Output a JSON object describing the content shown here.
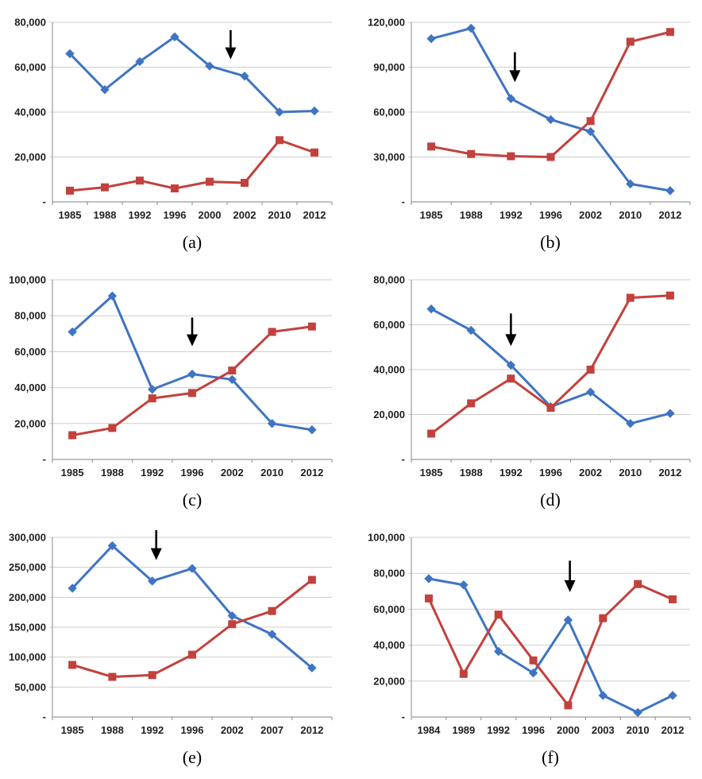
{
  "colors": {
    "series_blue": "#3E74C2",
    "series_red": "#C2413D",
    "gridline": "#CDCDCD",
    "axis": "#9B9B9B",
    "tick_label": "#1F1F1F",
    "arrow": "#000000",
    "background": "#FFFFFF"
  },
  "chart_data": [
    {
      "type": "line",
      "caption": "(a)",
      "categories": [
        "1985",
        "1988",
        "1992",
        "1996",
        "2000",
        "2002",
        "2010",
        "2012"
      ],
      "series": [
        {
          "name": "blue-diamond-series",
          "color_key": "series_blue",
          "marker": "diamond",
          "values": [
            66000,
            50000,
            62500,
            73500,
            60500,
            56000,
            40000,
            40500
          ]
        },
        {
          "name": "red-square-series",
          "color_key": "series_red",
          "marker": "square",
          "values": [
            5000,
            6500,
            9500,
            6000,
            9000,
            8500,
            27500,
            22000
          ]
        }
      ],
      "ylim": [
        0,
        80000
      ],
      "ytick_step": 20000,
      "y_zero_label": "-",
      "grid": true,
      "legend": "none",
      "annotation_arrow": {
        "x_index": 4.6,
        "y_from": 76500,
        "y_to": 63500
      }
    },
    {
      "type": "line",
      "caption": "(b)",
      "categories": [
        "1985",
        "1988",
        "1992",
        "1996",
        "2002",
        "2010",
        "2012"
      ],
      "series": [
        {
          "name": "blue-diamond-series",
          "color_key": "series_blue",
          "marker": "diamond",
          "values": [
            109000,
            116000,
            69000,
            55000,
            47000,
            12000,
            7500
          ]
        },
        {
          "name": "red-square-series",
          "color_key": "series_red",
          "marker": "square",
          "values": [
            37000,
            32000,
            30500,
            30000,
            54000,
            107000,
            113500
          ]
        }
      ],
      "ylim": [
        0,
        120000
      ],
      "ytick_step": 30000,
      "y_zero_label": "-",
      "grid": true,
      "legend": "none",
      "annotation_arrow": {
        "x_index": 2.1,
        "y_from": 100000,
        "y_to": 80000
      }
    },
    {
      "type": "line",
      "caption": "(c)",
      "categories": [
        "1985",
        "1988",
        "1992",
        "1996",
        "2002",
        "2010",
        "2012"
      ],
      "series": [
        {
          "name": "blue-diamond-series",
          "color_key": "series_blue",
          "marker": "diamond",
          "values": [
            71000,
            91000,
            39000,
            47500,
            44500,
            20000,
            16500
          ]
        },
        {
          "name": "red-square-series",
          "color_key": "series_red",
          "marker": "square",
          "values": [
            13500,
            17500,
            34000,
            37000,
            49500,
            71000,
            74000
          ]
        }
      ],
      "ylim": [
        0,
        100000
      ],
      "ytick_step": 20000,
      "y_zero_label": "-",
      "grid": true,
      "legend": "none",
      "annotation_arrow": {
        "x_index": 3.0,
        "y_from": 79000,
        "y_to": 63000
      }
    },
    {
      "type": "line",
      "caption": "(d)",
      "categories": [
        "1985",
        "1988",
        "1992",
        "1996",
        "2002",
        "2010",
        "2012"
      ],
      "series": [
        {
          "name": "blue-diamond-series",
          "color_key": "series_blue",
          "marker": "diamond",
          "values": [
            67000,
            57500,
            42000,
            23500,
            30000,
            16000,
            20500
          ]
        },
        {
          "name": "red-square-series",
          "color_key": "series_red",
          "marker": "square",
          "values": [
            11500,
            25000,
            36000,
            23000,
            40000,
            72000,
            73000
          ]
        }
      ],
      "ylim": [
        0,
        80000
      ],
      "ytick_step": 20000,
      "y_zero_label": "-",
      "grid": true,
      "legend": "none",
      "annotation_arrow": {
        "x_index": 2.0,
        "y_from": 65000,
        "y_to": 50500
      }
    },
    {
      "type": "line",
      "caption": "(e)",
      "categories": [
        "1985",
        "1988",
        "1992",
        "1996",
        "2002",
        "2007",
        "2012"
      ],
      "series": [
        {
          "name": "blue-diamond-series",
          "color_key": "series_blue",
          "marker": "diamond",
          "values": [
            215000,
            286000,
            227000,
            248000,
            169000,
            138000,
            82000
          ]
        },
        {
          "name": "red-square-series",
          "color_key": "series_red",
          "marker": "square",
          "values": [
            87000,
            67000,
            70000,
            104000,
            155000,
            177000,
            229000
          ]
        }
      ],
      "ylim": [
        0,
        300000
      ],
      "ytick_step": 50000,
      "y_zero_label": "-",
      "grid": true,
      "legend": "none",
      "annotation_arrow": {
        "x_index": 2.1,
        "y_from": 312000,
        "y_to": 262000
      }
    },
    {
      "type": "line",
      "caption": "(f)",
      "categories": [
        "1984",
        "1989",
        "1992",
        "1996",
        "2000",
        "2003",
        "2010",
        "2012"
      ],
      "series": [
        {
          "name": "blue-diamond-series",
          "color_key": "series_blue",
          "marker": "diamond",
          "values": [
            77000,
            73500,
            36500,
            24500,
            54000,
            12000,
            2500,
            12000
          ]
        },
        {
          "name": "red-square-series",
          "color_key": "series_red",
          "marker": "square",
          "values": [
            66000,
            24000,
            57000,
            31500,
            6500,
            55000,
            74000,
            65500
          ]
        }
      ],
      "ylim": [
        0,
        100000
      ],
      "ytick_step": 20000,
      "y_zero_label": "-",
      "grid": true,
      "legend": "none",
      "annotation_arrow": {
        "x_index": 4.05,
        "y_from": 87000,
        "y_to": 69500
      }
    }
  ]
}
